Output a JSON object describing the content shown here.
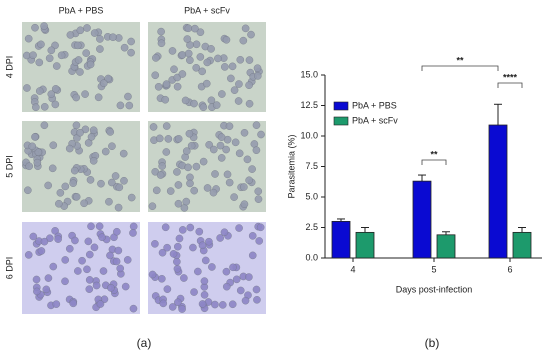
{
  "panel_a": {
    "columns": [
      "PbA + PBS",
      "PbA + scFv"
    ],
    "rows": [
      "4 DPI",
      "5 DPI",
      "6 DPI"
    ],
    "caption": "(a)"
  },
  "panel_b_caption": "(b)",
  "chart_data": {
    "type": "bar",
    "x_label": "Days post-infection",
    "y_label": "Parasitemia (%)",
    "categories": [
      "4",
      "5",
      "6"
    ],
    "series": [
      {
        "name": "PbA + PBS",
        "color": "#0a0ad2",
        "values": [
          3.0,
          6.3,
          10.9
        ],
        "errors": [
          0.2,
          0.5,
          1.7
        ]
      },
      {
        "name": "PbA + scFv",
        "color": "#1d9a6c",
        "values": [
          2.1,
          1.9,
          2.1
        ],
        "errors": [
          0.4,
          0.25,
          0.4
        ]
      }
    ],
    "ylim": [
      0,
      15
    ],
    "yticks": [
      {
        "value": 0,
        "label": "0.0"
      },
      {
        "value": 2.5,
        "label": "2.5"
      },
      {
        "value": 5,
        "label": "5.0"
      },
      {
        "value": 7.5,
        "label": "7.5"
      },
      {
        "value": 10,
        "label": "10.0"
      },
      {
        "value": 12.5,
        "label": "12.5"
      },
      {
        "value": 15,
        "label": "15.0"
      }
    ],
    "annotations": [
      "**",
      "****",
      "**"
    ],
    "legend": "upper left"
  }
}
